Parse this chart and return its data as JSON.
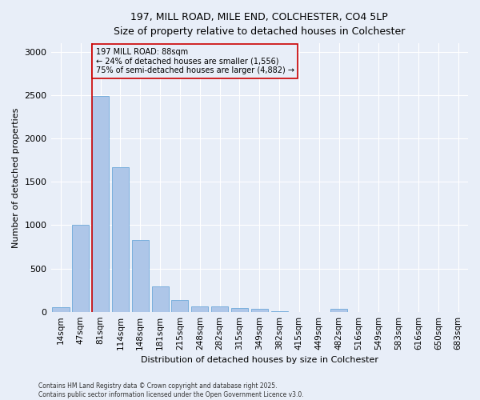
{
  "title_line1": "197, MILL ROAD, MILE END, COLCHESTER, CO4 5LP",
  "title_line2": "Size of property relative to detached houses in Colchester",
  "xlabel": "Distribution of detached houses by size in Colchester",
  "ylabel": "Number of detached properties",
  "categories": [
    "14sqm",
    "47sqm",
    "81sqm",
    "114sqm",
    "148sqm",
    "181sqm",
    "215sqm",
    "248sqm",
    "282sqm",
    "315sqm",
    "349sqm",
    "382sqm",
    "415sqm",
    "449sqm",
    "482sqm",
    "516sqm",
    "549sqm",
    "583sqm",
    "616sqm",
    "650sqm",
    "683sqm"
  ],
  "values": [
    50,
    1000,
    2490,
    1670,
    830,
    290,
    140,
    65,
    60,
    45,
    30,
    10,
    0,
    0,
    30,
    0,
    0,
    0,
    0,
    0,
    0
  ],
  "bar_color": "#aec6e8",
  "bar_edge_color": "#5a9fd4",
  "vline_color": "#cc0000",
  "annotation_text": "197 MILL ROAD: 88sqm\n← 24% of detached houses are smaller (1,556)\n75% of semi-detached houses are larger (4,882) →",
  "annotation_box_edge_color": "#cc0000",
  "ylim": [
    0,
    3100
  ],
  "yticks": [
    0,
    500,
    1000,
    1500,
    2000,
    2500,
    3000
  ],
  "background_color": "#e8eef8",
  "footer_line1": "Contains HM Land Registry data © Crown copyright and database right 2025.",
  "footer_line2": "Contains public sector information licensed under the Open Government Licence v3.0."
}
